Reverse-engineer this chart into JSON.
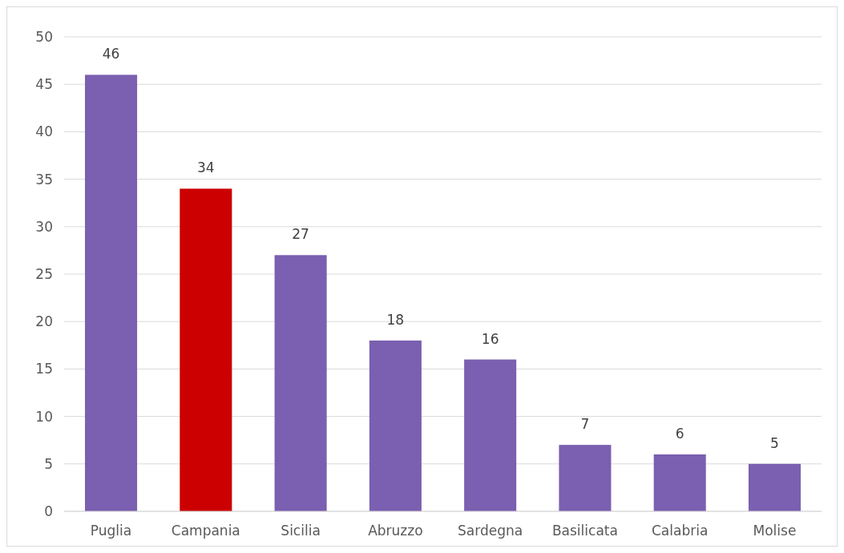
{
  "chart_data": {
    "type": "bar",
    "categories": [
      "Puglia",
      "Campania",
      "Sicilia",
      "Abruzzo",
      "Sardegna",
      "Basilicata",
      "Calabria",
      "Molise"
    ],
    "values": [
      46,
      34,
      27,
      18,
      16,
      7,
      6,
      5
    ],
    "colors": [
      "#7b5fb0",
      "#cc0000",
      "#7b5fb0",
      "#7b5fb0",
      "#7b5fb0",
      "#7b5fb0",
      "#7b5fb0",
      "#7b5fb0"
    ],
    "ylim": [
      0,
      50
    ],
    "yticks": [
      0,
      5,
      10,
      15,
      20,
      25,
      30,
      35,
      40,
      45,
      50
    ],
    "grid": "y",
    "data_labels": true
  }
}
